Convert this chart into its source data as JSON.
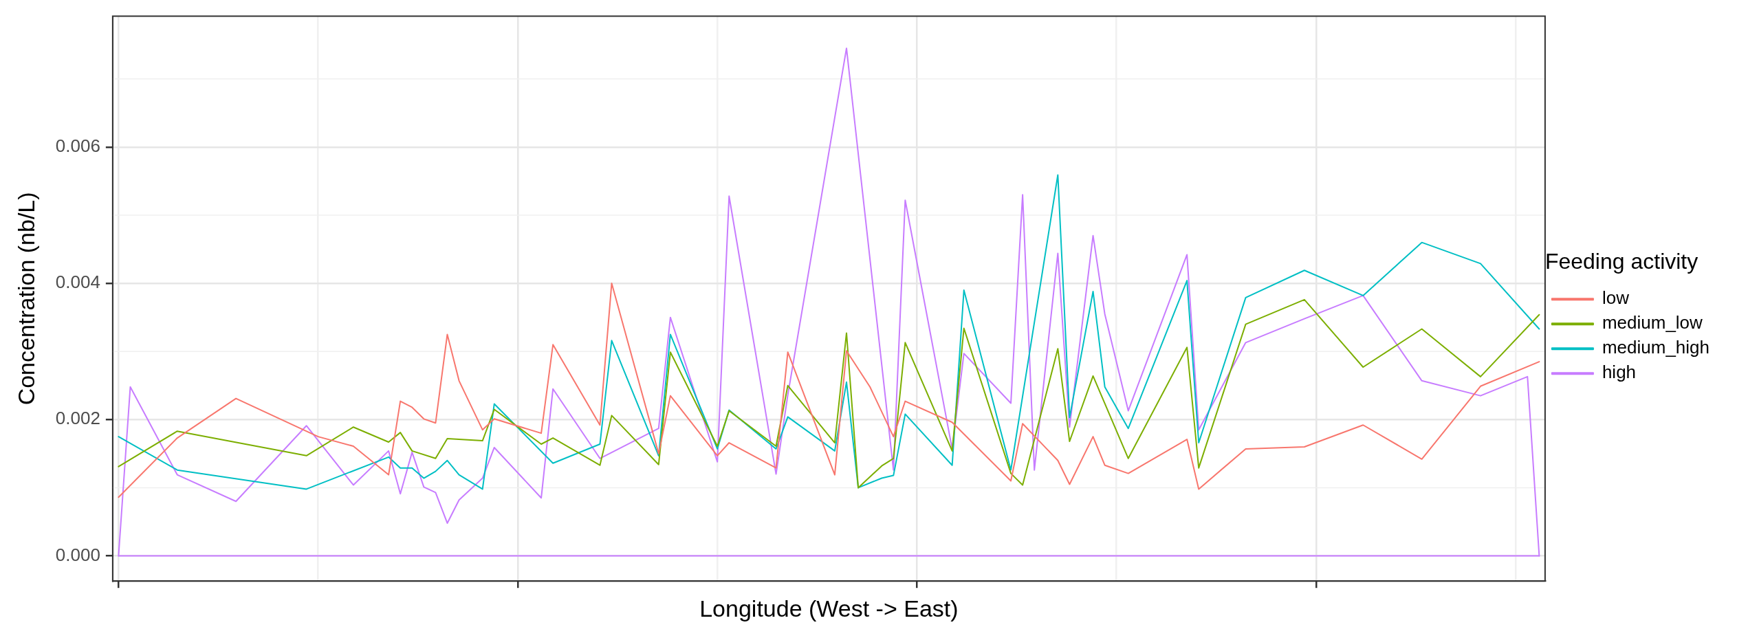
{
  "chart_data": {
    "type": "line",
    "xlabel": "Longitude (West -> East)",
    "ylabel": "Concentration (nb/L)",
    "legend_title": "Feeding activity",
    "legend": "right",
    "grid": true,
    "marker": "none",
    "line_style": "solid",
    "tick_labels": "y",
    "categories": [
      null,
      null,
      null,
      null,
      null,
      null,
      null,
      null,
      null,
      null,
      null,
      null,
      null,
      null,
      null,
      null,
      null,
      null,
      null,
      null,
      null,
      null,
      null,
      null,
      null,
      null,
      null,
      null,
      null,
      null,
      null,
      null,
      null,
      null,
      null,
      null,
      null,
      null,
      null,
      null,
      null,
      null,
      null,
      null,
      null,
      null,
      null,
      null,
      null,
      null,
      null,
      null,
      null,
      null,
      null,
      null,
      null,
      null,
      null,
      null,
      null,
      null,
      null,
      null,
      null,
      null,
      null,
      null,
      null,
      null,
      null,
      null,
      null,
      null,
      null,
      null,
      null,
      null,
      null,
      null,
      null,
      null,
      null,
      null,
      null,
      null,
      null,
      null,
      null,
      null,
      null,
      null,
      null,
      null,
      null,
      null,
      null,
      null,
      null,
      null,
      null,
      null,
      null,
      null,
      null,
      null,
      null,
      null,
      null,
      null,
      null,
      null,
      null,
      null,
      null,
      null,
      null,
      null,
      null,
      null,
      null,
      null
    ],
    "ylim": [
      -0.00037,
      0.00792
    ],
    "yticks": [
      {
        "value": 0,
        "label": "0.000"
      },
      {
        "value": 0.002,
        "label": "0.002"
      },
      {
        "value": 0.004,
        "label": "0.004"
      },
      {
        "value": 0.006,
        "label": "0.006"
      }
    ],
    "series": [
      {
        "name": "low",
        "color": "#f8766d",
        "values": [
          0.00086,
          null,
          null,
          null,
          null,
          0.00173,
          null,
          null,
          null,
          null,
          0.00231,
          null,
          null,
          null,
          null,
          null,
          null,
          0.00175,
          null,
          null,
          0.00161,
          null,
          null,
          0.00119,
          0.00227,
          0.00218,
          0.00201,
          0.00195,
          0.00325,
          0.00257,
          null,
          0.00185,
          0.00201,
          null,
          null,
          null,
          0.0018,
          0.0031,
          null,
          null,
          null,
          0.00192,
          0.004,
          null,
          null,
          null,
          0.0015,
          0.00235,
          null,
          null,
          null,
          0.00147,
          0.00166,
          null,
          null,
          null,
          0.00129,
          0.00299,
          null,
          null,
          null,
          0.00119,
          0.00301,
          null,
          0.00248,
          null,
          0.00175,
          0.00227,
          null,
          null,
          null,
          0.00196,
          null,
          null,
          null,
          null,
          0.0011,
          0.00194,
          null,
          null,
          0.0014,
          0.00105,
          null,
          0.00175,
          0.00133,
          null,
          0.00121,
          null,
          null,
          null,
          null,
          0.00171,
          0.00098,
          null,
          null,
          null,
          0.00157,
          null,
          null,
          null,
          null,
          0.0016,
          null,
          null,
          null,
          null,
          0.00192,
          null,
          null,
          null,
          null,
          0.00142,
          null,
          null,
          null,
          null,
          0.00249,
          null,
          null,
          null,
          null,
          0.00285
        ]
      },
      {
        "name": "medium_low",
        "color": "#7cae00",
        "values": [
          0.00131,
          null,
          null,
          null,
          null,
          0.00183,
          null,
          null,
          null,
          null,
          null,
          null,
          null,
          null,
          null,
          null,
          0.00147,
          null,
          null,
          null,
          0.00189,
          null,
          null,
          0.00167,
          0.00181,
          0.00154,
          null,
          0.00143,
          0.00172,
          null,
          null,
          0.00169,
          0.00215,
          null,
          null,
          null,
          0.00164,
          0.00173,
          null,
          null,
          null,
          0.00133,
          0.00206,
          null,
          null,
          null,
          0.00134,
          0.00299,
          null,
          null,
          null,
          0.00161,
          0.00213,
          null,
          null,
          null,
          0.00161,
          0.0025,
          null,
          null,
          null,
          0.00166,
          0.00327,
          0.001,
          null,
          0.00132,
          0.00143,
          0.00313,
          null,
          null,
          null,
          0.00154,
          0.00334,
          null,
          null,
          null,
          0.00121,
          0.00104,
          null,
          null,
          0.00304,
          0.00168,
          null,
          0.00264,
          null,
          null,
          0.00143,
          null,
          null,
          null,
          null,
          0.00306,
          0.00129,
          null,
          null,
          null,
          0.0034,
          null,
          null,
          null,
          null,
          0.00376,
          null,
          null,
          null,
          null,
          0.00277,
          null,
          null,
          null,
          null,
          0.00333,
          null,
          null,
          null,
          null,
          0.00263,
          null,
          null,
          null,
          null,
          0.00354
        ]
      },
      {
        "name": "medium_high",
        "color": "#00bfc4",
        "values": [
          0.00175,
          null,
          null,
          null,
          null,
          0.00126,
          null,
          null,
          null,
          null,
          null,
          null,
          null,
          null,
          null,
          null,
          0.00098,
          null,
          null,
          null,
          null,
          null,
          null,
          0.00145,
          0.00129,
          0.00129,
          0.00114,
          0.00124,
          0.0014,
          0.00119,
          null,
          0.00098,
          0.00223,
          null,
          null,
          null,
          null,
          0.00136,
          null,
          null,
          null,
          0.00164,
          0.00316,
          null,
          null,
          null,
          0.00147,
          0.00325,
          null,
          null,
          null,
          0.00157,
          0.00214,
          null,
          null,
          null,
          0.00157,
          0.00204,
          null,
          null,
          null,
          0.00154,
          0.00255,
          0.001,
          null,
          0.00114,
          0.00118,
          0.00208,
          null,
          null,
          null,
          0.00133,
          0.0039,
          null,
          null,
          null,
          0.00126,
          null,
          null,
          null,
          0.00559,
          0.00203,
          null,
          0.00388,
          0.00248,
          null,
          0.00187,
          null,
          null,
          null,
          null,
          0.00404,
          0.00166,
          null,
          null,
          null,
          0.00379,
          null,
          null,
          null,
          null,
          0.00419,
          null,
          null,
          null,
          null,
          0.00382,
          null,
          null,
          null,
          null,
          0.0046,
          null,
          null,
          null,
          null,
          0.00429,
          null,
          null,
          null,
          null,
          0.00333
        ]
      },
      {
        "name": "high",
        "color": "#c77cff",
        "values": [
          0,
          0.00248,
          null,
          null,
          null,
          0.00119,
          null,
          null,
          null,
          null,
          0.0008,
          null,
          null,
          null,
          null,
          null,
          0.00191,
          null,
          null,
          null,
          0.00104,
          null,
          null,
          0.00154,
          0.00091,
          0.00152,
          0.00101,
          0.00093,
          0.00048,
          0.00082,
          null,
          0.00114,
          0.00159,
          null,
          null,
          null,
          0.00085,
          0.00245,
          null,
          null,
          null,
          0.00143,
          null,
          null,
          null,
          null,
          0.00187,
          0.0035,
          null,
          null,
          null,
          0.00138,
          0.00528,
          null,
          null,
          null,
          0.0012,
          0.00236,
          null,
          null,
          null,
          null,
          0.00745,
          null,
          null,
          null,
          0.00126,
          0.00522,
          null,
          null,
          null,
          0.00157,
          0.00297,
          null,
          null,
          null,
          0.00224,
          0.0053,
          0.00126,
          null,
          0.00444,
          0.00189,
          null,
          0.0047,
          0.00355,
          null,
          0.00213,
          null,
          null,
          null,
          null,
          0.00442,
          0.00185,
          null,
          null,
          null,
          0.00313,
          null,
          null,
          null,
          null,
          0.00348,
          null,
          null,
          null,
          null,
          0.00382,
          null,
          null,
          null,
          null,
          0.00257,
          null,
          null,
          null,
          null,
          0.00235,
          null,
          null,
          null,
          0.00263,
          0
        ]
      },
      {
        "color": "#c77cff",
        "values": [
          0,
          null,
          null,
          null,
          null,
          null,
          null,
          null,
          null,
          null,
          null,
          null,
          null,
          null,
          null,
          null,
          null,
          null,
          null,
          null,
          null,
          null,
          null,
          null,
          null,
          null,
          null,
          null,
          null,
          null,
          null,
          null,
          null,
          null,
          null,
          null,
          null,
          null,
          null,
          null,
          null,
          null,
          null,
          null,
          null,
          null,
          null,
          null,
          null,
          null,
          null,
          null,
          null,
          null,
          null,
          null,
          null,
          null,
          null,
          null,
          null,
          null,
          null,
          null,
          null,
          null,
          null,
          null,
          null,
          null,
          null,
          null,
          null,
          null,
          null,
          null,
          null,
          null,
          null,
          null,
          null,
          null,
          null,
          null,
          null,
          null,
          null,
          null,
          null,
          null,
          null,
          null,
          null,
          null,
          null,
          null,
          null,
          null,
          null,
          null,
          null,
          null,
          null,
          null,
          null,
          null,
          null,
          null,
          null,
          null,
          null,
          null,
          null,
          null,
          null,
          null,
          null,
          null,
          null,
          null,
          null,
          0
        ]
      }
    ]
  }
}
